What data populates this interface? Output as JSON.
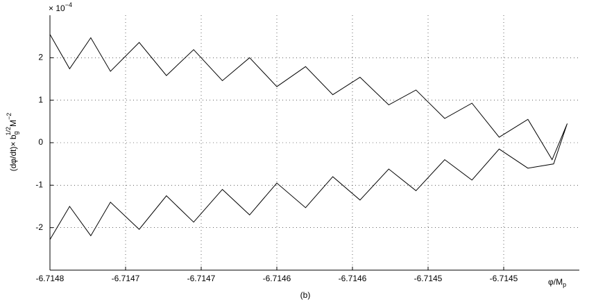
{
  "chart_data": {
    "type": "line",
    "x_label": "φ/M",
    "x_label_sub": "p",
    "y_label": "(dφ/dt)× b",
    "y_label_sub": "g",
    "y_label_sup": "1/2",
    "y_label_unit": "M",
    "y_label_unit_sup": "−2",
    "y_scale_base": "× 10",
    "y_scale_exponent": "−4",
    "caption": "(b)",
    "xlim": [
      -6.7148,
      -6.71445
    ],
    "xticks": [
      -6.7148,
      {
        "value": -6.71475,
        "label": "-6.7147"
      },
      -6.7147,
      {
        "value": -6.71465,
        "label": "-6.7146"
      },
      -6.7146,
      {
        "value": -6.71455,
        "label": "-6.7145"
      },
      -6.7145
    ],
    "ylim": [
      -3,
      3
    ],
    "yticks": [
      -2,
      -1,
      0,
      1,
      2
    ],
    "grid": true,
    "series": [
      {
        "color": "#000000",
        "x": [
          -6.7148,
          -6.714787,
          -6.714773,
          -6.71476,
          -6.714741,
          -6.714723,
          -6.714705,
          -6.714686,
          -6.714668,
          -6.71465,
          -6.714631,
          -6.714613,
          -6.714595,
          -6.714576,
          -6.714558,
          -6.714539,
          -6.714521,
          -6.714503,
          -6.714484,
          -6.714468,
          -6.714458,
          -6.714467,
          -6.714484,
          -6.714503,
          -6.714521,
          -6.714539,
          -6.714558,
          -6.714576,
          -6.714595,
          -6.714613,
          -6.714631,
          -6.71465,
          -6.714668,
          -6.714686,
          -6.714705,
          -6.714723,
          -6.714741,
          -6.71476,
          -6.714773,
          -6.714787,
          -6.7148
        ],
        "values": [
          2.55,
          1.74,
          2.47,
          1.68,
          2.36,
          1.58,
          2.19,
          1.46,
          2.0,
          1.32,
          1.79,
          1.13,
          1.54,
          0.89,
          1.24,
          0.57,
          0.93,
          0.13,
          0.55,
          -0.4,
          0.45,
          -0.5,
          -0.6,
          -0.15,
          -0.88,
          -0.4,
          -1.13,
          -0.62,
          -1.35,
          -0.8,
          -1.53,
          -0.95,
          -1.7,
          -1.1,
          -1.87,
          -1.25,
          -2.04,
          -1.4,
          -2.19,
          -1.5,
          -2.28
        ]
      }
    ]
  }
}
